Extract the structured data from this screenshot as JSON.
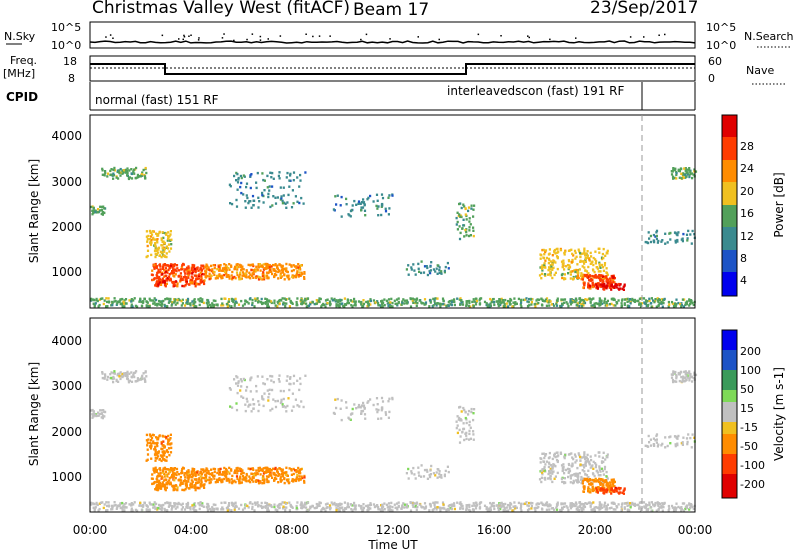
{
  "header": {
    "station": "Christmas Valley West (fitACF)",
    "beam": "Beam 17",
    "date": "23/Sep/2017"
  },
  "noise_panel": {
    "left_label": "N.Sky",
    "right_label": "N.Search",
    "left_ticks": [
      "10^5",
      "10^0"
    ],
    "right_ticks": [
      "10^5",
      "10^0"
    ]
  },
  "freq_panel": {
    "left_label_1": "Freq.",
    "left_label_2": "[MHz]",
    "left_ticks": [
      "18",
      "8"
    ],
    "right_label": "Nave",
    "right_ticks": [
      "60",
      "0"
    ]
  },
  "cpid": {
    "label": "CPID",
    "programs": [
      {
        "name": "normal (fast) 151 RF",
        "start": 0
      },
      {
        "name": "interleavedscon (fast) 191 RF",
        "start": 21.75
      }
    ]
  },
  "chart_data": [
    {
      "type": "heatmap",
      "title": "",
      "xlabel": "",
      "ylabel": "Slant Range [km]",
      "xlim": [
        0,
        24
      ],
      "ylim": [
        180,
        4500
      ],
      "yticks": [
        "1000",
        "2000",
        "3000",
        "4000"
      ],
      "colorbar": {
        "label": "Power [dB]",
        "range": [
          0,
          32
        ],
        "ticks": [
          "4",
          "8",
          "12",
          "16",
          "20",
          "24",
          "28"
        ],
        "colors": [
          "#0000ee",
          "#1d54c6",
          "#3a8a8f",
          "#52a05a",
          "#f0c020",
          "#ff8c00",
          "#ff3c00",
          "#e00000"
        ]
      }
    },
    {
      "type": "heatmap",
      "title": "",
      "xlabel": "Time UT",
      "ylabel": "Slant Range [km]",
      "xlim": [
        0,
        24
      ],
      "ylim": [
        180,
        4500
      ],
      "xticks": [
        "00:00",
        "04:00",
        "08:00",
        "12:00",
        "16:00",
        "20:00",
        "00:00"
      ],
      "yticks": [
        "1000",
        "2000",
        "3000",
        "4000"
      ],
      "colorbar": {
        "label": "Velocity [m s-1]",
        "range": [
          -250,
          250
        ],
        "ticks": [
          "200",
          "100",
          "50",
          "15",
          "-15",
          "-50",
          "-100",
          "-200"
        ],
        "colors": [
          "#e00000",
          "#ff3c00",
          "#ff8c00",
          "#f0c020",
          "#c0c0c0",
          "#7ed957",
          "#3a9a5a",
          "#1d54c6",
          "#0000ee"
        ]
      }
    }
  ]
}
